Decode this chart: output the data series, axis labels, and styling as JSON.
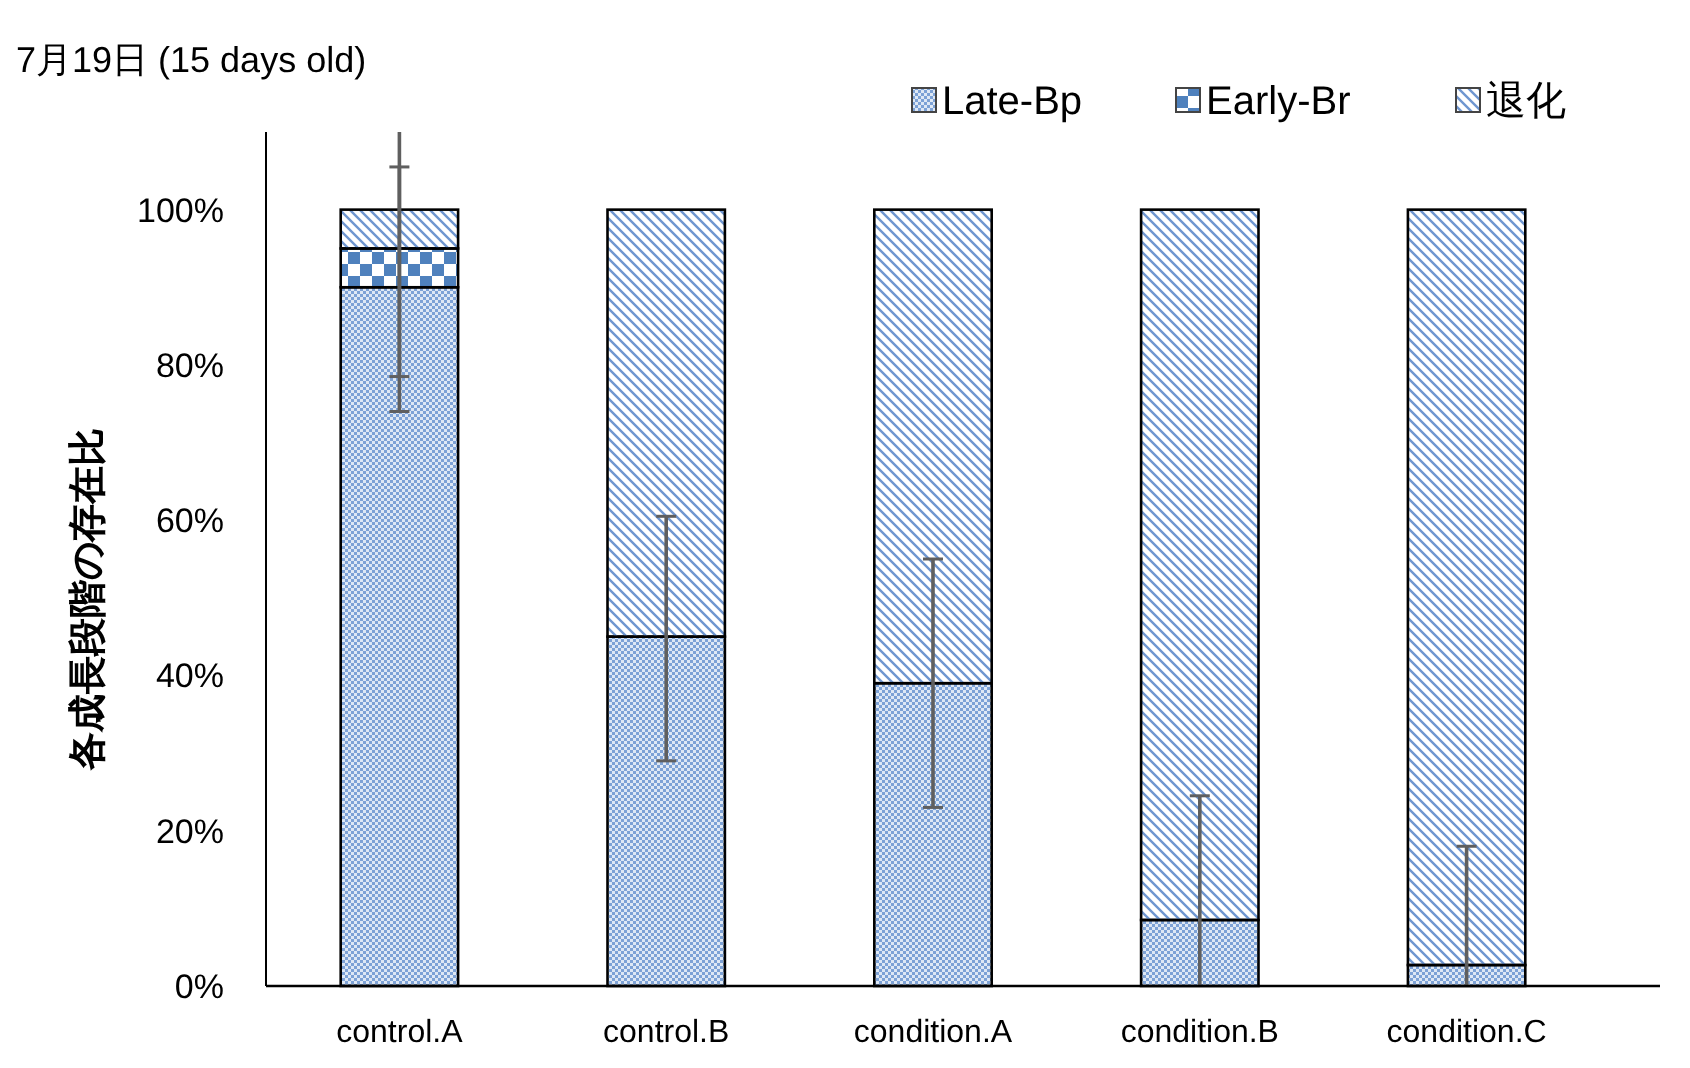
{
  "chart_data": {
    "type": "bar",
    "title": "7月19日 (15 days old)",
    "ylabel": "各成長段階の存在比",
    "stacked": true,
    "legend": "top right",
    "categories": [
      "control.A",
      "control.B",
      "condition.A",
      "condition.B",
      "condition.C"
    ],
    "series": [
      {
        "name": "Late-Bp",
        "color": "#7da2d6",
        "values": [
          90,
          45,
          39,
          8.5,
          2.7
        ],
        "errors": [
          [
            74,
            105.5
          ],
          [
            29,
            60.5
          ],
          [
            23,
            55
          ],
          [
            0,
            24.5
          ],
          [
            0,
            18
          ]
        ]
      },
      {
        "name": "Early-Br",
        "color": "#4f81bd",
        "values": [
          5,
          0,
          0,
          0,
          0
        ],
        "errors": [
          [
            78.5,
            110
          ],
          null,
          null,
          null,
          null
        ]
      },
      {
        "name": "退化",
        "color": "#6f96d0",
        "values": [
          5,
          55,
          61,
          91.5,
          97.3
        ]
      }
    ],
    "ylim": [
      0,
      110
    ],
    "yticks": [
      {
        "value": 0,
        "label": "0%"
      },
      {
        "value": 20,
        "label": "20%"
      },
      {
        "value": 40,
        "label": "40%"
      },
      {
        "value": 60,
        "label": "60%"
      },
      {
        "value": 80,
        "label": "80%"
      },
      {
        "value": 100,
        "label": "100%"
      }
    ]
  }
}
